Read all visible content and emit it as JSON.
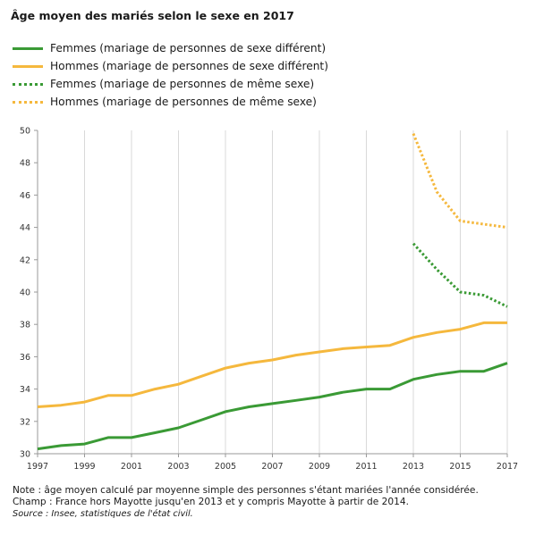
{
  "chart_data": {
    "type": "line",
    "title": "Âge moyen des mariés selon le sexe en 2017",
    "xlim": [
      1997,
      2017
    ],
    "ylim": [
      30,
      50
    ],
    "x_ticks": [
      "1997",
      "1999",
      "2001",
      "2003",
      "2005",
      "2007",
      "2009",
      "2011",
      "2013",
      "2015",
      "2017"
    ],
    "y_ticks": [
      "30",
      "32",
      "34",
      "36",
      "38",
      "40",
      "42",
      "44",
      "46",
      "48",
      "50"
    ],
    "grid": "vertical",
    "legend_position": "top-left",
    "series": [
      {
        "name": "Femmes (mariage de personnes de sexe différent)",
        "color": "#3a9a35",
        "style": "solid",
        "x": [
          1997,
          1998,
          1999,
          2000,
          2001,
          2002,
          2003,
          2004,
          2005,
          2006,
          2007,
          2008,
          2009,
          2010,
          2011,
          2012,
          2013,
          2014,
          2015,
          2016,
          2017
        ],
        "y": [
          30.3,
          30.5,
          30.6,
          31.0,
          31.0,
          31.3,
          31.6,
          32.1,
          32.6,
          32.9,
          33.1,
          33.3,
          33.5,
          33.8,
          34.0,
          34.0,
          34.6,
          34.9,
          35.1,
          35.1,
          35.6
        ]
      },
      {
        "name": "Hommes (mariage de personnes de sexe différent)",
        "color": "#f5b83d",
        "style": "solid",
        "x": [
          1997,
          1998,
          1999,
          2000,
          2001,
          2002,
          2003,
          2004,
          2005,
          2006,
          2007,
          2008,
          2009,
          2010,
          2011,
          2012,
          2013,
          2014,
          2015,
          2016,
          2017
        ],
        "y": [
          32.9,
          33.0,
          33.2,
          33.6,
          33.6,
          34.0,
          34.3,
          34.8,
          35.3,
          35.6,
          35.8,
          36.1,
          36.3,
          36.5,
          36.6,
          36.7,
          37.2,
          37.5,
          37.7,
          38.1,
          38.1
        ]
      },
      {
        "name": "Femmes (mariage de personnes de même sexe)",
        "color": "#3a9a35",
        "style": "dotted",
        "x": [
          2013,
          2014,
          2015,
          2016,
          2017
        ],
        "y": [
          43.0,
          41.4,
          40.0,
          39.8,
          39.1
        ]
      },
      {
        "name": "Hommes (mariage de personnes de même sexe)",
        "color": "#f5b83d",
        "style": "dotted",
        "x": [
          2013,
          2014,
          2015,
          2016,
          2017
        ],
        "y": [
          49.8,
          46.2,
          44.4,
          44.2,
          44.0
        ]
      }
    ]
  },
  "notes": {
    "note": "Note : âge moyen calculé par moyenne simple des personnes s'étant mariées l'année considérée.",
    "champ": "Champ : France hors Mayotte jusqu'en 2013 et y compris Mayotte à partir de 2014.",
    "source": "Source : Insee, statistiques de l'état civil."
  }
}
